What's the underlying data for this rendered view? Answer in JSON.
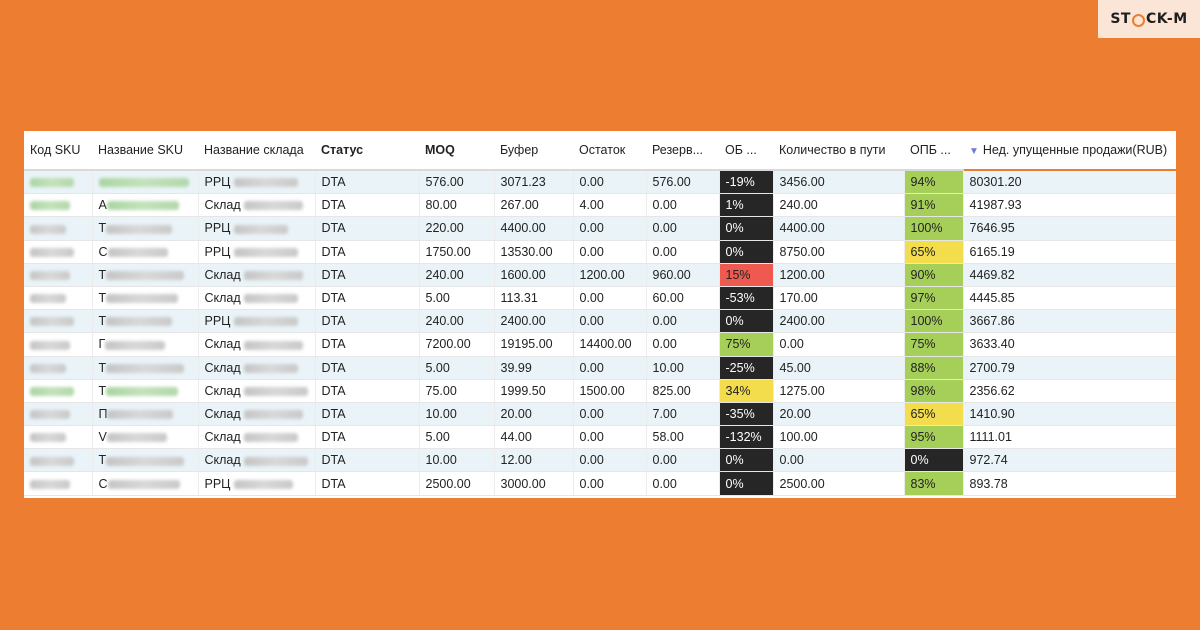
{
  "brand": {
    "logo_left": "ST",
    "logo_right": "CK-M"
  },
  "colors": {
    "background": "#ed7d31",
    "dark": "#262626",
    "red": "#ee5a50",
    "green": "#a6cf59",
    "yellow": "#f4dd4d",
    "row_alt": "#eaf4f8"
  },
  "table": {
    "columns": [
      {
        "label": "Код SKU"
      },
      {
        "label": "Название SKU"
      },
      {
        "label": "Название склада"
      },
      {
        "label": "Статус",
        "bold": true
      },
      {
        "label": "MOQ",
        "bold": true
      },
      {
        "label": "Буфер"
      },
      {
        "label": "Остаток"
      },
      {
        "label": "Резерв..."
      },
      {
        "label": "ОБ ..."
      },
      {
        "label": "Количество в пути"
      },
      {
        "label": "ОПБ ..."
      },
      {
        "label": "Нед. упущенные продажи(RUB)",
        "sorted": true
      }
    ],
    "sort_icon": "sort-descending-icon",
    "rows": [
      {
        "sku_green": true,
        "name_green": true,
        "warehouse_prefix": "РРЦ",
        "status": "DTA",
        "moq": "576.00",
        "buffer": "3071.23",
        "stock": "0.00",
        "reserve": "576.00",
        "ob": "-19%",
        "ob_color": "dark",
        "transit": "3456.00",
        "opb": "94%",
        "opb_color": "green",
        "lost": "80301.20"
      },
      {
        "sku_green": true,
        "name_green": true,
        "name_prefix": "А",
        "warehouse_prefix": "Склад",
        "status": "DTA",
        "moq": "80.00",
        "buffer": "267.00",
        "stock": "4.00",
        "reserve": "0.00",
        "ob": "1%",
        "ob_color": "dark",
        "transit": "240.00",
        "opb": "91%",
        "opb_color": "green",
        "lost": "41987.93"
      },
      {
        "name_prefix": "Т",
        "warehouse_prefix": "РРЦ",
        "status": "DTA",
        "moq": "220.00",
        "buffer": "4400.00",
        "stock": "0.00",
        "reserve": "0.00",
        "ob": "0%",
        "ob_color": "dark",
        "transit": "4400.00",
        "opb": "100%",
        "opb_color": "green",
        "lost": "7646.95"
      },
      {
        "name_prefix": "С",
        "warehouse_prefix": "РРЦ",
        "status": "DTA",
        "moq": "1750.00",
        "buffer": "13530.00",
        "stock": "0.00",
        "reserve": "0.00",
        "ob": "0%",
        "ob_color": "dark",
        "transit": "8750.00",
        "opb": "65%",
        "opb_color": "yellow",
        "lost": "6165.19"
      },
      {
        "name_prefix": "Т",
        "warehouse_prefix": "Склад",
        "status": "DTA",
        "moq": "240.00",
        "buffer": "1600.00",
        "stock": "1200.00",
        "reserve": "960.00",
        "ob": "15%",
        "ob_color": "red",
        "transit": "1200.00",
        "opb": "90%",
        "opb_color": "green",
        "lost": "4469.82"
      },
      {
        "name_prefix": "Т",
        "warehouse_prefix": "Склад",
        "status": "DTA",
        "moq": "5.00",
        "buffer": "113.31",
        "stock": "0.00",
        "reserve": "60.00",
        "ob": "-53%",
        "ob_color": "dark",
        "transit": "170.00",
        "opb": "97%",
        "opb_color": "green",
        "lost": "4445.85"
      },
      {
        "name_prefix": "Т",
        "warehouse_prefix": "РРЦ",
        "status": "DTA",
        "moq": "240.00",
        "buffer": "2400.00",
        "stock": "0.00",
        "reserve": "0.00",
        "ob": "0%",
        "ob_color": "dark",
        "transit": "2400.00",
        "opb": "100%",
        "opb_color": "green",
        "lost": "3667.86"
      },
      {
        "name_prefix": "Г",
        "warehouse_prefix": "Склад",
        "status": "DTA",
        "moq": "7200.00",
        "buffer": "19195.00",
        "stock": "14400.00",
        "reserve": "0.00",
        "ob": "75%",
        "ob_color": "green",
        "transit": "0.00",
        "opb": "75%",
        "opb_color": "green",
        "lost": "3633.40"
      },
      {
        "name_prefix": "Т",
        "warehouse_prefix": "Склад",
        "status": "DTA",
        "moq": "5.00",
        "buffer": "39.99",
        "stock": "0.00",
        "reserve": "10.00",
        "ob": "-25%",
        "ob_color": "dark",
        "transit": "45.00",
        "opb": "88%",
        "opb_color": "green",
        "lost": "2700.79"
      },
      {
        "sku_green": true,
        "name_green": true,
        "name_prefix": "Т",
        "warehouse_prefix": "Склад",
        "status": "DTA",
        "moq": "75.00",
        "buffer": "1999.50",
        "stock": "1500.00",
        "reserve": "825.00",
        "ob": "34%",
        "ob_color": "yellow",
        "transit": "1275.00",
        "opb": "98%",
        "opb_color": "green",
        "lost": "2356.62"
      },
      {
        "name_prefix": "П",
        "warehouse_prefix": "Склад",
        "status": "DTA",
        "moq": "10.00",
        "buffer": "20.00",
        "stock": "0.00",
        "reserve": "7.00",
        "ob": "-35%",
        "ob_color": "dark",
        "transit": "20.00",
        "opb": "65%",
        "opb_color": "yellow",
        "lost": "1410.90"
      },
      {
        "name_prefix": "V",
        "warehouse_prefix": "Склад",
        "status": "DTA",
        "moq": "5.00",
        "buffer": "44.00",
        "stock": "0.00",
        "reserve": "58.00",
        "ob": "-132%",
        "ob_color": "dark",
        "transit": "100.00",
        "opb": "95%",
        "opb_color": "green",
        "lost": "1111.01"
      },
      {
        "name_prefix": "Т",
        "warehouse_prefix": "Склад",
        "status": "DTA",
        "moq": "10.00",
        "buffer": "12.00",
        "stock": "0.00",
        "reserve": "0.00",
        "ob": "0%",
        "ob_color": "dark",
        "transit": "0.00",
        "opb": "0%",
        "opb_color": "dark",
        "lost": "972.74"
      },
      {
        "name_prefix": "С",
        "warehouse_prefix": "РРЦ",
        "status": "DTA",
        "moq": "2500.00",
        "buffer": "3000.00",
        "stock": "0.00",
        "reserve": "0.00",
        "ob": "0%",
        "ob_color": "dark",
        "transit": "2500.00",
        "opb": "83%",
        "opb_color": "green",
        "lost": "893.78"
      }
    ]
  }
}
